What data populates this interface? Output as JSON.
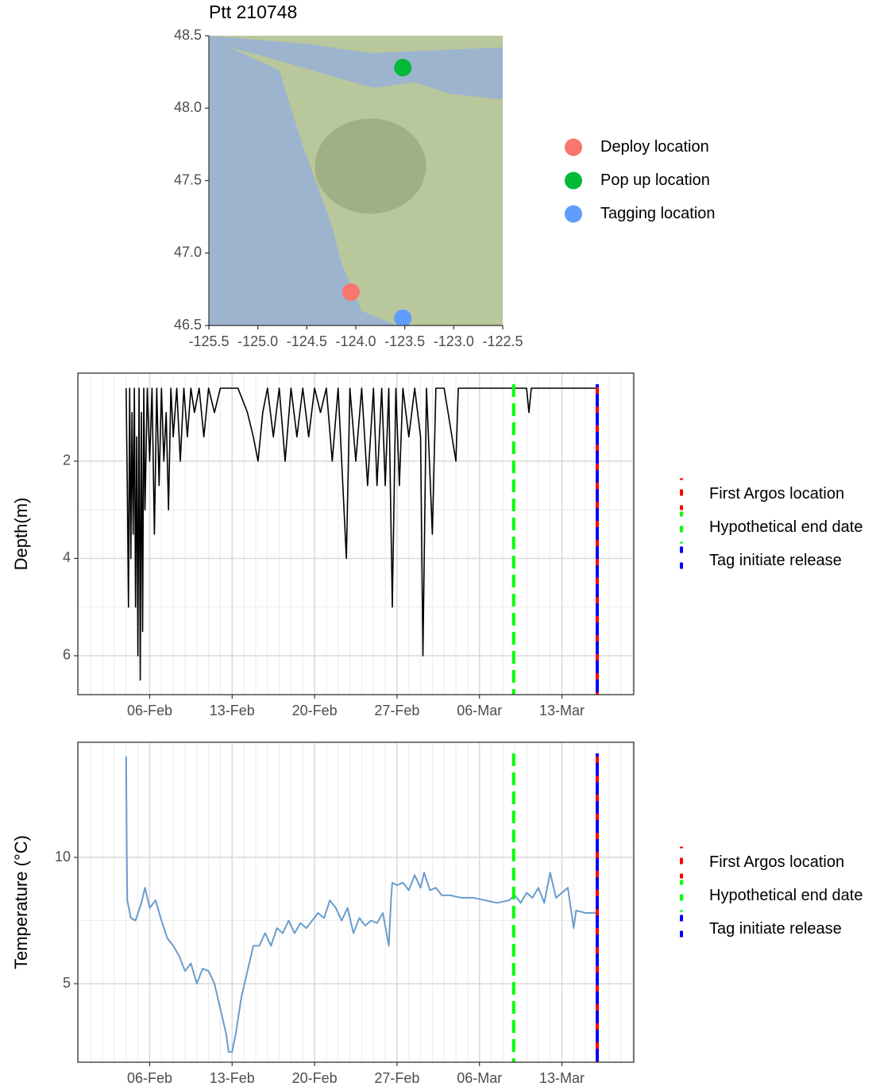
{
  "chart_data": [
    {
      "type": "scatter",
      "title": "Ptt 210748",
      "basemap": true,
      "legend": "right",
      "xlim": [
        -125.5,
        -122.5
      ],
      "ylim": [
        46.5,
        48.5
      ],
      "xticks": [
        -125.5,
        {
          "value": -125,
          "label": "-125.0"
        },
        -124.5,
        {
          "value": -124,
          "label": "-124.0"
        },
        -123.5,
        {
          "value": -123,
          "label": "-123.0"
        },
        -122.5
      ],
      "yticks": [
        46.5,
        {
          "value": 47,
          "label": "47.0"
        },
        47.5,
        {
          "value": 48,
          "label": "48.0"
        },
        48.5
      ],
      "series": [
        {
          "name": "Deploy location",
          "color": "#f8766d",
          "x": [
            -124.05
          ],
          "values": [
            46.73
          ]
        },
        {
          "name": "Pop up location",
          "color": "#00ba38",
          "x": [
            -123.52
          ],
          "values": [
            48.28
          ]
        },
        {
          "name": "Tagging location",
          "color": "#619cff",
          "x": [
            -123.52
          ],
          "values": [
            46.55
          ]
        }
      ]
    },
    {
      "type": "line",
      "ylabel": "Depth(m)",
      "grid": true,
      "y_reversed": true,
      "legend": "right",
      "xlim": [
        30.9,
        78.1
      ],
      "ylim": [
        0.19,
        6.8
      ],
      "xticks": [
        {
          "value": 37,
          "label": "06-Feb"
        },
        {
          "value": 44,
          "label": "13-Feb"
        },
        {
          "value": 51,
          "label": "20-Feb"
        },
        {
          "value": 58,
          "label": "27-Feb"
        },
        {
          "value": 65,
          "label": "06-Mar"
        },
        {
          "value": 72,
          "label": "13-Mar"
        }
      ],
      "yticks": [
        2,
        4,
        6
      ],
      "x": [
        35.0,
        35.1,
        35.2,
        35.3,
        35.4,
        35.5,
        35.6,
        35.7,
        35.8,
        35.9,
        36.0,
        36.1,
        36.2,
        36.3,
        36.4,
        36.5,
        36.6,
        36.8,
        37.0,
        37.2,
        37.4,
        37.6,
        37.8,
        38.0,
        38.2,
        38.4,
        38.6,
        38.8,
        39.0,
        39.3,
        39.6,
        39.9,
        40.2,
        40.5,
        40.8,
        41.2,
        41.6,
        42.0,
        42.5,
        43.0,
        44.5,
        45.3,
        45.8,
        46.2,
        46.6,
        47.0,
        47.5,
        48.0,
        48.5,
        49.0,
        49.5,
        50.0,
        50.5,
        51.0,
        51.5,
        52.0,
        52.5,
        53.0,
        53.5,
        53.7,
        54.0,
        54.5,
        55.0,
        55.5,
        56.0,
        56.3,
        56.7,
        57.0,
        57.3,
        57.6,
        57.9,
        58.2,
        58.5,
        59.0,
        59.5,
        60.0,
        60.2,
        60.5,
        61.0,
        61.3,
        62.0,
        63.0,
        63.2,
        66.0,
        69.0,
        69.2,
        69.4,
        75.0
      ],
      "series": [
        {
          "color": "#000000",
          "values": [
            0.5,
            2.5,
            5.0,
            0.5,
            4.0,
            1.0,
            3.5,
            0.5,
            5.0,
            1.5,
            6.0,
            0.5,
            6.5,
            1.0,
            5.5,
            0.5,
            3.0,
            0.5,
            2.0,
            0.5,
            3.5,
            0.5,
            2.5,
            0.5,
            2.0,
            1.0,
            3.0,
            0.5,
            1.5,
            0.5,
            2.0,
            0.5,
            1.5,
            0.5,
            1.0,
            0.5,
            1.5,
            0.5,
            1.0,
            0.5,
            0.5,
            1.0,
            1.5,
            2.0,
            1.0,
            0.5,
            1.5,
            0.5,
            2.0,
            0.5,
            1.5,
            0.5,
            1.5,
            0.5,
            1.0,
            0.5,
            2.0,
            0.5,
            3.0,
            4.0,
            0.5,
            2.0,
            0.5,
            2.5,
            0.5,
            2.5,
            0.5,
            2.5,
            0.5,
            5.0,
            0.5,
            2.5,
            0.5,
            1.5,
            0.5,
            1.5,
            6.0,
            0.5,
            3.5,
            0.5,
            0.5,
            2.0,
            0.5,
            0.5,
            0.5,
            1.0,
            0.5,
            0.5
          ]
        }
      ],
      "vlines": [
        {
          "name": "First Argos location",
          "color": "#ff0000",
          "x": 75.0
        },
        {
          "name": "Hypothetical end date",
          "color": "#00ff00",
          "x": 67.9
        },
        {
          "name": "Tag initiate release",
          "color": "#0000ff",
          "x": 75.0
        }
      ]
    },
    {
      "type": "line",
      "ylabel": "Temperature (°C)",
      "grid": true,
      "legend": "right",
      "xlim": [
        30.9,
        78.1
      ],
      "ylim": [
        1.89,
        14.56
      ],
      "xticks": [
        {
          "value": 37,
          "label": "06-Feb"
        },
        {
          "value": 44,
          "label": "13-Feb"
        },
        {
          "value": 51,
          "label": "20-Feb"
        },
        {
          "value": 58,
          "label": "27-Feb"
        },
        {
          "value": 65,
          "label": "06-Mar"
        },
        {
          "value": 72,
          "label": "13-Mar"
        }
      ],
      "yticks": [
        5,
        10
      ],
      "x": [
        35.0,
        35.05,
        35.1,
        35.4,
        35.8,
        36.3,
        36.6,
        37.0,
        37.5,
        38.0,
        38.5,
        39.0,
        39.5,
        40.0,
        40.5,
        41.0,
        41.5,
        42.0,
        42.5,
        43.0,
        43.5,
        43.7,
        44.0,
        44.3,
        44.8,
        45.3,
        45.8,
        46.3,
        46.8,
        47.3,
        47.8,
        48.3,
        48.8,
        49.3,
        49.8,
        50.3,
        50.8,
        51.3,
        51.8,
        52.3,
        52.8,
        53.3,
        53.8,
        54.3,
        54.8,
        55.3,
        55.8,
        56.3,
        56.8,
        57.3,
        57.5,
        57.6,
        58.0,
        58.5,
        59.0,
        59.5,
        60.0,
        60.3,
        60.8,
        61.3,
        61.8,
        62.5,
        63.5,
        64.5,
        65.5,
        66.5,
        67.5,
        68.0,
        68.5,
        69.0,
        69.5,
        70.0,
        70.5,
        71.0,
        71.5,
        72.0,
        72.5,
        73.0,
        73.2,
        74.0,
        75.0
      ],
      "series": [
        {
          "color": "#6a9ccc",
          "values": [
            14.0,
            10.5,
            8.3,
            7.6,
            7.5,
            8.2,
            8.8,
            8.0,
            8.3,
            7.5,
            6.8,
            6.5,
            6.1,
            5.5,
            5.8,
            5.0,
            5.6,
            5.5,
            5.0,
            4.0,
            3.0,
            2.3,
            2.3,
            3.0,
            4.5,
            5.5,
            6.5,
            6.5,
            7.0,
            6.5,
            7.2,
            7.0,
            7.5,
            7.0,
            7.4,
            7.2,
            7.5,
            7.8,
            7.6,
            8.3,
            8.0,
            7.5,
            8.0,
            7.0,
            7.6,
            7.3,
            7.5,
            7.4,
            7.8,
            6.5,
            8.4,
            9.0,
            8.9,
            9.0,
            8.7,
            9.3,
            8.8,
            9.4,
            8.7,
            8.8,
            8.5,
            8.5,
            8.4,
            8.4,
            8.3,
            8.2,
            8.3,
            8.5,
            8.2,
            8.6,
            8.4,
            8.8,
            8.2,
            9.4,
            8.4,
            8.6,
            8.8,
            7.2,
            7.9,
            7.8,
            7.8
          ]
        }
      ],
      "vlines": [
        {
          "name": "First Argos location",
          "color": "#ff0000",
          "x": 75.0
        },
        {
          "name": "Hypothetical end date",
          "color": "#00ff00",
          "x": 67.9
        },
        {
          "name": "Tag initiate release",
          "color": "#0000ff",
          "x": 75.0
        }
      ]
    }
  ]
}
